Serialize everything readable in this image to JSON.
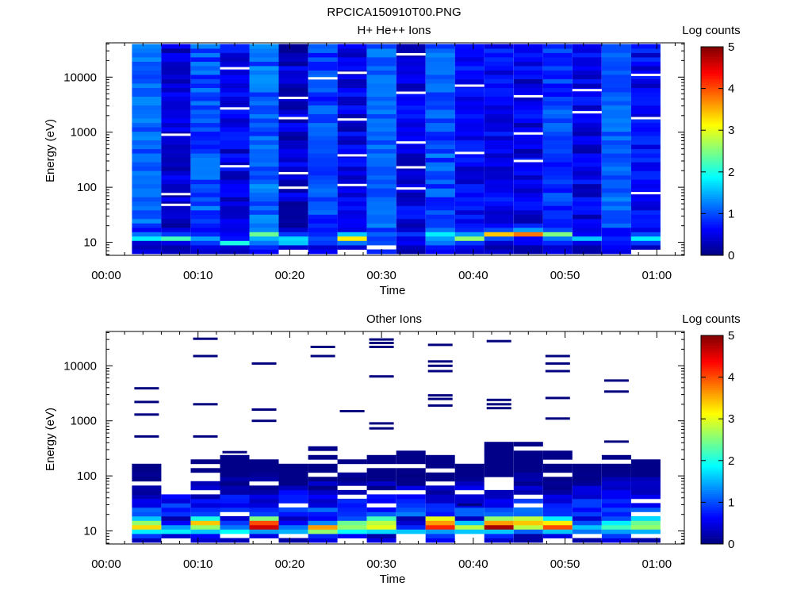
{
  "figure_title": "RPCICA150910T00.PNG",
  "colors": {
    "background": "#ffffff",
    "colormap": [
      "#00007f",
      "#0000ff",
      "#007fff",
      "#00ffff",
      "#7fff7f",
      "#ffff00",
      "#ff7f00",
      "#ff0000",
      "#7f0000"
    ]
  },
  "chart_data": [
    {
      "type": "heatmap",
      "title": "H+ He++ Ions",
      "xlabel": "Time",
      "ylabel": "Energy (eV)",
      "x_ticks": [
        "00:00",
        "00:10",
        "00:20",
        "00:30",
        "00:40",
        "00:50",
        "01:00"
      ],
      "x_tick_minutes": [
        0,
        10,
        20,
        30,
        40,
        50,
        60
      ],
      "xlim_minutes": [
        0,
        63
      ],
      "y_scale": "log",
      "y_ticks": [
        "10",
        "100",
        "1000",
        "10000"
      ],
      "y_tick_values": [
        10,
        100,
        1000,
        10000
      ],
      "ylim": [
        5.8,
        42000
      ],
      "colorbar": {
        "label": "Log counts",
        "ticks": [
          "0",
          "1",
          "2",
          "3",
          "4",
          "5"
        ],
        "range": [
          0,
          5
        ]
      },
      "columns": [
        {
          "t0": 2.8,
          "t1": 6.0,
          "low": [
            0.5,
            0.3,
            0.4,
            1.8,
            1.2,
            0.6
          ],
          "high": 1.1,
          "spread": 0.25
        },
        {
          "t0": 6.0,
          "t1": 9.2,
          "low": [
            0.3,
            0.2,
            0.5,
            2.2,
            0.9,
            0.5
          ],
          "high": 0.4,
          "spread": 0.3
        },
        {
          "t0": 9.2,
          "t1": 12.4,
          "low": [
            0.4,
            0.5,
            0.9,
            1.4,
            0.8,
            0.6
          ],
          "high": 1.0,
          "spread": 0.3
        },
        {
          "t0": 12.4,
          "t1": 15.6,
          "low": [
            0.3,
            0.4,
            2.0,
            0.7,
            0.6,
            0.5
          ],
          "high": 0.5,
          "spread": 0.3
        },
        {
          "t0": 15.6,
          "t1": 18.8,
          "low": [
            0.6,
            0.8,
            1.2,
            1.5,
            2.4,
            1.3
          ],
          "high": 1.1,
          "spread": 0.3
        },
        {
          "t0": 18.8,
          "t1": 22.0,
          "low": [
            -1,
            0.4,
            1.6,
            1.7,
            0.9,
            0.4
          ],
          "high": 0.4,
          "spread": 0.3
        },
        {
          "t0": 22.0,
          "t1": 25.2,
          "low": [
            0.6,
            0.4,
            0.9,
            1.0,
            0.8,
            0.7
          ],
          "high": 0.9,
          "spread": 0.3
        },
        {
          "t0": 25.2,
          "t1": 28.4,
          "low": [
            -1,
            0.4,
            1.2,
            3.2,
            1.6,
            0.5
          ],
          "high": 0.5,
          "spread": 0.3
        },
        {
          "t0": 28.4,
          "t1": 31.6,
          "low": [
            0.8,
            -1,
            1.0,
            0.9,
            1.1,
            0.8
          ],
          "high": 1.1,
          "spread": 0.2
        },
        {
          "t0": 31.6,
          "t1": 34.8,
          "low": [
            0.2,
            0.3,
            0.6,
            0.5,
            0.9,
            0.4
          ],
          "high": 0.5,
          "spread": 0.3
        },
        {
          "t0": 34.8,
          "t1": 38.0,
          "low": [
            0.6,
            0.7,
            1.2,
            1.4,
            1.8,
            1.2
          ],
          "high": 1.0,
          "spread": 0.3
        },
        {
          "t0": 38.0,
          "t1": 41.2,
          "low": [
            0.4,
            0.5,
            0.9,
            2.6,
            1.4,
            0.8
          ],
          "high": 0.6,
          "spread": 0.3
        },
        {
          "t0": 41.2,
          "t1": 44.4,
          "low": [
            0.4,
            0.2,
            0.4,
            1.0,
            3.4,
            1.0
          ],
          "high": 0.6,
          "spread": 0.3
        },
        {
          "t0": 44.4,
          "t1": 47.6,
          "low": [
            0.2,
            0.2,
            0.6,
            0.6,
            3.8,
            1.4
          ],
          "high": 0.5,
          "spread": 0.3
        },
        {
          "t0": 47.6,
          "t1": 50.8,
          "low": [
            0.5,
            0.4,
            0.8,
            1.2,
            2.5,
            1.0
          ],
          "high": 0.9,
          "spread": 0.3
        },
        {
          "t0": 50.8,
          "t1": 54.0,
          "low": [
            0.2,
            0.2,
            0.5,
            1.6,
            0.6,
            0.5
          ],
          "high": 0.5,
          "spread": 0.3
        },
        {
          "t0": 54.0,
          "t1": 57.2,
          "low": [
            0.5,
            0.6,
            0.7,
            0.8,
            0.6,
            0.6
          ],
          "high": 1.1,
          "spread": 0.2
        },
        {
          "t0": 57.2,
          "t1": 60.4,
          "low": [
            -1,
            0.3,
            0.9,
            1.8,
            1.0,
            0.5
          ],
          "high": 0.6,
          "spread": 0.3
        }
      ],
      "gap_lines": [
        {
          "col": 1,
          "energies": [
            900,
            75,
            48
          ]
        },
        {
          "col": 3,
          "energies": [
            14500,
            2700,
            240
          ]
        },
        {
          "col": 5,
          "energies": [
            4200,
            1800,
            180,
            98
          ]
        },
        {
          "col": 6,
          "energies": [
            9500
          ]
        },
        {
          "col": 7,
          "energies": [
            12000,
            1700,
            380,
            110
          ]
        },
        {
          "col": 9,
          "energies": [
            26000,
            5200,
            650,
            230,
            95
          ]
        },
        {
          "col": 11,
          "energies": [
            7000,
            420
          ]
        },
        {
          "col": 13,
          "energies": [
            4500,
            950,
            300
          ]
        },
        {
          "col": 15,
          "energies": [
            5800,
            2300
          ]
        },
        {
          "col": 17,
          "energies": [
            11000,
            1800,
            78
          ]
        }
      ]
    },
    {
      "type": "heatmap",
      "title": "Other Ions",
      "xlabel": "Time",
      "ylabel": "Energy (eV)",
      "x_ticks": [
        "00:00",
        "00:10",
        "00:20",
        "00:30",
        "00:40",
        "00:50",
        "01:00"
      ],
      "x_tick_minutes": [
        0,
        10,
        20,
        30,
        40,
        50,
        60
      ],
      "xlim_minutes": [
        0,
        63
      ],
      "y_scale": "log",
      "y_ticks": [
        "10",
        "100",
        "1000",
        "10000"
      ],
      "y_tick_values": [
        10,
        100,
        1000,
        10000
      ],
      "ylim": [
        5.8,
        42000
      ],
      "colorbar": {
        "label": "Log counts",
        "ticks": [
          "0",
          "1",
          "2",
          "3",
          "4",
          "5"
        ],
        "range": [
          0,
          5
        ]
      },
      "columns": [
        {
          "t0": 2.8,
          "t1": 6.0,
          "top": 230,
          "low": [
            0.3,
            0.9,
            1.8,
            3.3,
            2.6,
            1.6
          ],
          "lines": [
            3900,
            2200,
            1300,
            520
          ]
        },
        {
          "t0": 6.0,
          "t1": 9.2,
          "top": 45,
          "low": [
            -1,
            0.4,
            1.8,
            1.4,
            0.6,
            0.2
          ],
          "lines": []
        },
        {
          "t0": 9.2,
          "t1": 12.4,
          "top": 190,
          "low": [
            0.4,
            0.6,
            1.6,
            2.6,
            3.4,
            2.0
          ],
          "lines": [
            31000,
            15000,
            2000,
            520
          ]
        },
        {
          "t0": 12.4,
          "t1": 15.6,
          "top": 250,
          "low": [
            0.3,
            -1,
            1.9,
            1.2,
            0.9,
            0.4
          ],
          "lines": [
            270
          ]
        },
        {
          "t0": 15.6,
          "t1": 18.8,
          "top": 270,
          "low": [
            -1,
            0.5,
            1.4,
            4.6,
            4.0,
            2.5
          ],
          "lines": [
            11000,
            1600,
            1000
          ]
        },
        {
          "t0": 18.8,
          "t1": 22.0,
          "top": 215,
          "low": [
            0.2,
            -1,
            1.5,
            1.2,
            0.6,
            0.3
          ],
          "lines": []
        },
        {
          "t0": 22.0,
          "t1": 25.2,
          "top": 350,
          "low": [
            0.5,
            0.8,
            2.6,
            3.6,
            1.3,
            0.6
          ],
          "lines": [
            22000,
            15000
          ]
        },
        {
          "t0": 25.2,
          "t1": 28.4,
          "top": 190,
          "low": [
            -1,
            0.6,
            1.9,
            2.6,
            2.4,
            1.0
          ],
          "lines": [
            1500
          ]
        },
        {
          "t0": 28.4,
          "t1": 31.6,
          "top": 220,
          "low": [
            0.5,
            0.2,
            1.7,
            3.0,
            2.8,
            2.2
          ],
          "lines": [
            30000,
            26000,
            22000,
            6400,
            900,
            730
          ]
        },
        {
          "t0": 31.6,
          "t1": 34.8,
          "top": 290,
          "low": [
            -1,
            -1,
            1.6,
            0.8,
            0.4,
            0.2
          ],
          "lines": [
            100
          ]
        },
        {
          "t0": 34.8,
          "t1": 38.0,
          "top": 260,
          "low": [
            0.6,
            0.9,
            1.4,
            4.2,
            3.6,
            3.0
          ],
          "lines": [
            24000,
            12000,
            10000,
            8000,
            2900,
            2500,
            1900
          ]
        },
        {
          "t0": 38.0,
          "t1": 41.2,
          "top": 180,
          "low": [
            -1,
            -1,
            1.6,
            2.8,
            1.6,
            0.3
          ],
          "lines": [
            30
          ]
        },
        {
          "t0": 41.2,
          "t1": 44.4,
          "top": 420,
          "low": [
            0.4,
            0.8,
            1.6,
            4.8,
            3.6,
            2.6
          ],
          "lines": [
            28000,
            2400,
            2000,
            1700
          ]
        },
        {
          "t0": 44.4,
          "t1": 47.6,
          "top": 440,
          "low": [
            0.2,
            0.2,
            1.1,
            2.8,
            3.4,
            2.8
          ],
          "lines": []
        },
        {
          "t0": 47.6,
          "t1": 50.8,
          "top": 270,
          "low": [
            -1,
            0.5,
            1.6,
            4.0,
            3.2,
            1.8
          ],
          "lines": [
            15000,
            11000,
            8000,
            2600,
            1100
          ]
        },
        {
          "t0": 50.8,
          "t1": 54.0,
          "top": 175,
          "low": [
            0.2,
            -1,
            1.2,
            1.6,
            1.0,
            0.4
          ],
          "lines": []
        },
        {
          "t0": 54.0,
          "t1": 57.2,
          "top": 220,
          "low": [
            0.5,
            0.9,
            1.4,
            2.2,
            1.8,
            1.0
          ],
          "lines": [
            5400,
            3400,
            420
          ]
        },
        {
          "t0": 57.2,
          "t1": 60.4,
          "top": 210,
          "low": [
            0.2,
            -1,
            1.5,
            2.6,
            2.4,
            1.7
          ],
          "lines": []
        }
      ]
    }
  ]
}
